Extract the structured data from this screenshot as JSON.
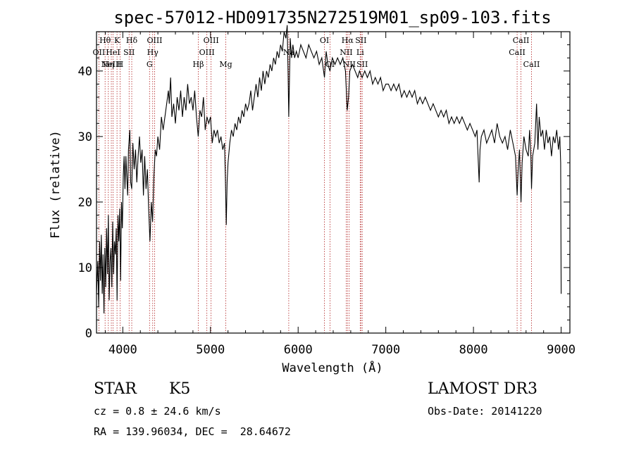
{
  "chart_data": {
    "type": "line",
    "title": "spec-57012-HD091735N272519M01_sp09-103.fits",
    "xlabel": "Wavelength (Å)",
    "ylabel": "Flux (relative)",
    "xlim": [
      3700,
      9100
    ],
    "ylim": [
      0,
      46
    ],
    "xticks": [
      {
        "value": 4000,
        "label": "4000"
      },
      {
        "value": 5000,
        "label": "5000"
      },
      {
        "value": 6000,
        "label": "6000"
      },
      {
        "value": 7000,
        "label": "7000"
      },
      {
        "value": 8000,
        "label": "8000"
      },
      {
        "value": 9000,
        "label": "9000"
      }
    ],
    "yticks": [
      {
        "value": 0,
        "label": "0"
      },
      {
        "value": 10,
        "label": "10"
      },
      {
        "value": 20,
        "label": "20"
      },
      {
        "value": 30,
        "label": "30"
      },
      {
        "value": 40,
        "label": "40"
      }
    ],
    "lines": [
      {
        "wl": 3727,
        "label": "OII",
        "row": 1
      },
      {
        "wl": 3798,
        "label": "Hθ",
        "row": 0
      },
      {
        "wl": 3835,
        "label": "Hη",
        "row": 2
      },
      {
        "wl": 3869,
        "label": "NeIII",
        "row": 2
      },
      {
        "wl": 3889,
        "label": "HeI",
        "row": 1
      },
      {
        "wl": 3934,
        "label": "K",
        "row": 0
      },
      {
        "wl": 3969,
        "label": "H",
        "row": 2
      },
      {
        "wl": 4072,
        "label": "SII",
        "row": 1
      },
      {
        "wl": 4102,
        "label": "Hδ",
        "row": 0
      },
      {
        "wl": 4305,
        "label": "G",
        "row": 2
      },
      {
        "wl": 4341,
        "label": "Hγ",
        "row": 1
      },
      {
        "wl": 4363,
        "label": "OIII",
        "row": 0
      },
      {
        "wl": 4861,
        "label": "Hβ",
        "row": 2
      },
      {
        "wl": 4959,
        "label": "OIII",
        "row": 1
      },
      {
        "wl": 5007,
        "label": "OIII",
        "row": 0
      },
      {
        "wl": 5175,
        "label": "Mg",
        "row": 2
      },
      {
        "wl": 5893,
        "label": "Na",
        "row": 1
      },
      {
        "wl": 6300,
        "label": "OI",
        "row": 0
      },
      {
        "wl": 6363,
        "label": "OI",
        "row": 2
      },
      {
        "wl": 6548,
        "label": "NII",
        "row": 1
      },
      {
        "wl": 6563,
        "label": "Hα",
        "row": 0
      },
      {
        "wl": 6583,
        "label": "NII",
        "row": 2
      },
      {
        "wl": 6708,
        "label": "Li",
        "row": 1
      },
      {
        "wl": 6716,
        "label": "SII",
        "row": 0
      },
      {
        "wl": 6731,
        "label": "SII",
        "row": 2
      },
      {
        "wl": 8498,
        "label": "CaII",
        "row": 1
      },
      {
        "wl": 8542,
        "label": "CaII",
        "row": 0
      },
      {
        "wl": 8662,
        "label": "CaII",
        "row": 2
      }
    ],
    "spectrum": [
      [
        3700,
        6
      ],
      [
        3715,
        11
      ],
      [
        3725,
        4
      ],
      [
        3735,
        14
      ],
      [
        3745,
        8
      ],
      [
        3755,
        15
      ],
      [
        3765,
        6
      ],
      [
        3775,
        12
      ],
      [
        3785,
        3
      ],
      [
        3795,
        13
      ],
      [
        3805,
        7
      ],
      [
        3815,
        16
      ],
      [
        3825,
        9
      ],
      [
        3835,
        18
      ],
      [
        3845,
        5
      ],
      [
        3855,
        11
      ],
      [
        3865,
        13
      ],
      [
        3875,
        7
      ],
      [
        3885,
        17
      ],
      [
        3895,
        9
      ],
      [
        3905,
        14
      ],
      [
        3915,
        12
      ],
      [
        3925,
        16
      ],
      [
        3935,
        5
      ],
      [
        3945,
        18
      ],
      [
        3955,
        14
      ],
      [
        3965,
        19
      ],
      [
        3975,
        8
      ],
      [
        3985,
        20
      ],
      [
        3995,
        16
      ],
      [
        4005,
        24
      ],
      [
        4015,
        27
      ],
      [
        4025,
        22
      ],
      [
        4035,
        27
      ],
      [
        4045,
        24
      ],
      [
        4055,
        21
      ],
      [
        4065,
        28
      ],
      [
        4080,
        31
      ],
      [
        4090,
        23
      ],
      [
        4102,
        22
      ],
      [
        4115,
        29
      ],
      [
        4130,
        25
      ],
      [
        4145,
        28
      ],
      [
        4160,
        23
      ],
      [
        4175,
        27
      ],
      [
        4190,
        30
      ],
      [
        4205,
        26
      ],
      [
        4220,
        28
      ],
      [
        4235,
        21
      ],
      [
        4250,
        27
      ],
      [
        4265,
        22
      ],
      [
        4280,
        25
      ],
      [
        4295,
        19
      ],
      [
        4310,
        14
      ],
      [
        4325,
        20
      ],
      [
        4340,
        17
      ],
      [
        4355,
        24
      ],
      [
        4370,
        28
      ],
      [
        4385,
        27
      ],
      [
        4400,
        30
      ],
      [
        4420,
        28
      ],
      [
        4440,
        33
      ],
      [
        4460,
        31
      ],
      [
        4480,
        33
      ],
      [
        4500,
        35
      ],
      [
        4520,
        37
      ],
      [
        4530,
        35
      ],
      [
        4545,
        39
      ],
      [
        4560,
        33
      ],
      [
        4580,
        35
      ],
      [
        4600,
        32
      ],
      [
        4620,
        36
      ],
      [
        4640,
        34
      ],
      [
        4660,
        37
      ],
      [
        4680,
        33
      ],
      [
        4700,
        36
      ],
      [
        4720,
        34
      ],
      [
        4740,
        38
      ],
      [
        4760,
        35
      ],
      [
        4780,
        36
      ],
      [
        4800,
        34
      ],
      [
        4820,
        37
      ],
      [
        4840,
        33
      ],
      [
        4860,
        30
      ],
      [
        4880,
        34
      ],
      [
        4900,
        33
      ],
      [
        4920,
        36
      ],
      [
        4940,
        31
      ],
      [
        4960,
        33
      ],
      [
        4980,
        32
      ],
      [
        5000,
        33
      ],
      [
        5020,
        29
      ],
      [
        5040,
        31
      ],
      [
        5060,
        30
      ],
      [
        5080,
        31
      ],
      [
        5100,
        29
      ],
      [
        5120,
        30
      ],
      [
        5140,
        28
      ],
      [
        5160,
        29
      ],
      [
        5170,
        24
      ],
      [
        5180,
        16.5
      ],
      [
        5190,
        23
      ],
      [
        5200,
        26
      ],
      [
        5220,
        29
      ],
      [
        5240,
        31
      ],
      [
        5260,
        30
      ],
      [
        5280,
        32
      ],
      [
        5300,
        31
      ],
      [
        5320,
        33
      ],
      [
        5340,
        32
      ],
      [
        5360,
        34
      ],
      [
        5380,
        33
      ],
      [
        5400,
        35
      ],
      [
        5420,
        34
      ],
      [
        5440,
        35
      ],
      [
        5460,
        37
      ],
      [
        5480,
        34
      ],
      [
        5500,
        36
      ],
      [
        5520,
        38
      ],
      [
        5540,
        36
      ],
      [
        5560,
        39
      ],
      [
        5580,
        37
      ],
      [
        5600,
        40
      ],
      [
        5620,
        38
      ],
      [
        5640,
        40
      ],
      [
        5660,
        39
      ],
      [
        5680,
        41
      ],
      [
        5700,
        40
      ],
      [
        5720,
        42
      ],
      [
        5740,
        41
      ],
      [
        5760,
        43
      ],
      [
        5780,
        42
      ],
      [
        5800,
        44
      ],
      [
        5820,
        43
      ],
      [
        5840,
        46
      ],
      [
        5860,
        45
      ],
      [
        5875,
        47
      ],
      [
        5885,
        40
      ],
      [
        5893,
        33
      ],
      [
        5900,
        38
      ],
      [
        5910,
        45
      ],
      [
        5925,
        42
      ],
      [
        5940,
        44
      ],
      [
        5960,
        42
      ],
      [
        5980,
        43
      ],
      [
        6000,
        42
      ],
      [
        6030,
        44
      ],
      [
        6060,
        43
      ],
      [
        6090,
        42
      ],
      [
        6120,
        44
      ],
      [
        6150,
        43
      ],
      [
        6180,
        42
      ],
      [
        6210,
        43
      ],
      [
        6240,
        41
      ],
      [
        6270,
        42
      ],
      [
        6300,
        39
      ],
      [
        6320,
        43
      ],
      [
        6340,
        41
      ],
      [
        6363,
        40
      ],
      [
        6390,
        42
      ],
      [
        6420,
        41
      ],
      [
        6450,
        42
      ],
      [
        6480,
        41
      ],
      [
        6510,
        42
      ],
      [
        6540,
        40
      ],
      [
        6560,
        34
      ],
      [
        6575,
        36
      ],
      [
        6590,
        40
      ],
      [
        6620,
        41
      ],
      [
        6650,
        40
      ],
      [
        6680,
        39
      ],
      [
        6700,
        40
      ],
      [
        6730,
        39
      ],
      [
        6760,
        40
      ],
      [
        6790,
        39
      ],
      [
        6820,
        40
      ],
      [
        6850,
        38
      ],
      [
        6880,
        39
      ],
      [
        6910,
        38
      ],
      [
        6940,
        39
      ],
      [
        6970,
        37
      ],
      [
        7000,
        38
      ],
      [
        7030,
        38
      ],
      [
        7060,
        37
      ],
      [
        7090,
        38
      ],
      [
        7120,
        37
      ],
      [
        7150,
        38
      ],
      [
        7180,
        36
      ],
      [
        7210,
        37
      ],
      [
        7240,
        36
      ],
      [
        7270,
        37
      ],
      [
        7300,
        36
      ],
      [
        7330,
        37
      ],
      [
        7360,
        35
      ],
      [
        7390,
        36
      ],
      [
        7420,
        35
      ],
      [
        7450,
        36
      ],
      [
        7480,
        35
      ],
      [
        7510,
        34
      ],
      [
        7540,
        35
      ],
      [
        7570,
        34
      ],
      [
        7600,
        33
      ],
      [
        7630,
        34
      ],
      [
        7660,
        33
      ],
      [
        7690,
        34
      ],
      [
        7720,
        32
      ],
      [
        7750,
        33
      ],
      [
        7780,
        32
      ],
      [
        7810,
        33
      ],
      [
        7840,
        32
      ],
      [
        7870,
        33
      ],
      [
        7900,
        32
      ],
      [
        7930,
        31
      ],
      [
        7960,
        32
      ],
      [
        7990,
        31
      ],
      [
        8020,
        30
      ],
      [
        8040,
        31
      ],
      [
        8055,
        26
      ],
      [
        8065,
        23
      ],
      [
        8075,
        28
      ],
      [
        8090,
        30
      ],
      [
        8120,
        31
      ],
      [
        8150,
        29
      ],
      [
        8180,
        30
      ],
      [
        8210,
        31
      ],
      [
        8240,
        29
      ],
      [
        8270,
        32
      ],
      [
        8300,
        30
      ],
      [
        8330,
        29
      ],
      [
        8360,
        30
      ],
      [
        8390,
        28
      ],
      [
        8420,
        31
      ],
      [
        8450,
        29
      ],
      [
        8480,
        27
      ],
      [
        8498,
        21
      ],
      [
        8510,
        25
      ],
      [
        8525,
        28
      ],
      [
        8542,
        20
      ],
      [
        8555,
        26
      ],
      [
        8575,
        30
      ],
      [
        8600,
        28
      ],
      [
        8625,
        27
      ],
      [
        8640,
        31
      ],
      [
        8655,
        27
      ],
      [
        8662,
        22
      ],
      [
        8675,
        27
      ],
      [
        8700,
        29
      ],
      [
        8720,
        35
      ],
      [
        8735,
        28
      ],
      [
        8750,
        33
      ],
      [
        8770,
        30
      ],
      [
        8790,
        31
      ],
      [
        8810,
        28
      ],
      [
        8830,
        31
      ],
      [
        8850,
        29
      ],
      [
        8870,
        30
      ],
      [
        8890,
        27
      ],
      [
        8910,
        30
      ],
      [
        8930,
        29
      ],
      [
        8950,
        31
      ],
      [
        8970,
        28
      ],
      [
        8985,
        30
      ],
      [
        8995,
        26
      ],
      [
        9000,
        6
      ]
    ]
  },
  "info": {
    "object_type": "STAR",
    "subclass": "K5",
    "survey": "LAMOST DR3",
    "cz": "cz = 0.8 ± 24.6 km/s",
    "obs_date": "Obs-Date: 20141220",
    "coords": "RA = 139.96034, DEC =  28.64672"
  }
}
